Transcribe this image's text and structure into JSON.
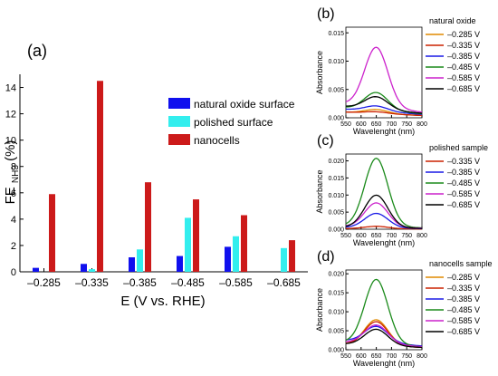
{
  "panel_labels": [
    "(a)",
    "(b)",
    "(c)",
    "(d)"
  ],
  "chart_data": [
    {
      "type": "bar",
      "panel": "(a)",
      "title": "",
      "ylabel": "FE",
      "ylabel_subscript": "NH3",
      "ylabel_unit": "(%)",
      "xlabel": "E (V vs. RHE)",
      "ylim": [
        0,
        15
      ],
      "yticks": [
        "0",
        "2",
        "4",
        "6",
        "8",
        "10",
        "12",
        "14"
      ],
      "categories": [
        "-0.285",
        "-0.335",
        "-0.385",
        "-0.485",
        "-0.585",
        "-0.685"
      ],
      "legend_position": "top-right",
      "series": [
        {
          "name": "natural oxide surface",
          "color": "#1010ee",
          "values": [
            0.3,
            0.6,
            1.1,
            1.2,
            1.9,
            null
          ]
        },
        {
          "name": "polished surface",
          "color": "#33eeee",
          "values": [
            null,
            0.2,
            1.7,
            4.1,
            2.7,
            1.8
          ]
        },
        {
          "name": "nanocells",
          "color": "#cc1a1a",
          "values": [
            5.9,
            14.5,
            6.8,
            5.5,
            4.3,
            2.4
          ]
        }
      ]
    },
    {
      "type": "line",
      "panel": "(b)",
      "legend_title": "natural oxide",
      "xlabel": "Wavelenght (nm)",
      "ylabel": "Absorbance",
      "xlim": [
        550,
        800
      ],
      "ylim": [
        0,
        0.016
      ],
      "xticks": [
        "550",
        "600",
        "650",
        "700",
        "750",
        "800"
      ],
      "yticks": [
        "0.000",
        "0.005",
        "0.010",
        "0.015"
      ],
      "series": [
        {
          "name": "–0.285 V",
          "color": "#e08a00",
          "peak": 0.0012,
          "base": 0.001
        },
        {
          "name": "–0.335 V",
          "color": "#cc2200",
          "peak": 0.0008,
          "base": 0.001
        },
        {
          "name": "–0.385 V",
          "color": "#1a1ae6",
          "peak": 0.0017,
          "base": 0.0015
        },
        {
          "name": "–0.485 V",
          "color": "#1a8a1a",
          "peak": 0.004,
          "base": 0.0018
        },
        {
          "name": "–0.585 V",
          "color": "#cc22cc",
          "peak": 0.0118,
          "base": 0.0025
        },
        {
          "name": "–0.685 V",
          "color": "#000000",
          "peak": 0.0032,
          "base": 0.002
        }
      ]
    },
    {
      "type": "line",
      "panel": "(c)",
      "legend_title": "polished sample",
      "xlabel": "Wavelenght (nm)",
      "ylabel": "Absorbance",
      "xlim": [
        550,
        800
      ],
      "ylim": [
        0,
        0.022
      ],
      "xticks": [
        "550",
        "600",
        "650",
        "700",
        "750",
        "800"
      ],
      "yticks": [
        "0.000",
        "0.005",
        "0.010",
        "0.015",
        "0.020"
      ],
      "series": [
        {
          "name": "–0.335 V",
          "color": "#cc2200",
          "peak": 0.0008,
          "base": 0.0002
        },
        {
          "name": "–0.385 V",
          "color": "#1a1ae6",
          "peak": 0.0045,
          "base": 0.0005
        },
        {
          "name": "–0.485 V",
          "color": "#1a8a1a",
          "peak": 0.0205,
          "base": 0.001
        },
        {
          "name": "–0.585 V",
          "color": "#cc22cc",
          "peak": 0.0075,
          "base": 0.0008
        },
        {
          "name": "–0.685 V",
          "color": "#000000",
          "peak": 0.0098,
          "base": 0.0006
        }
      ]
    },
    {
      "type": "line",
      "panel": "(d)",
      "legend_title": "nanocells sample",
      "xlabel": "Wavelenght (nm)",
      "ylabel": "Absorbance",
      "xlim": [
        550,
        800
      ],
      "ylim": [
        0,
        0.021
      ],
      "xticks": [
        "550",
        "600",
        "650",
        "700",
        "750",
        "800"
      ],
      "yticks": [
        "0.000",
        "0.005",
        "0.010",
        "0.015",
        "0.020"
      ],
      "series": [
        {
          "name": "–0.285 V",
          "color": "#e08a00",
          "peak": 0.0075,
          "base": 0.0015
        },
        {
          "name": "–0.335 V",
          "color": "#cc2200",
          "peak": 0.007,
          "base": 0.0015
        },
        {
          "name": "–0.385 V",
          "color": "#1a1ae6",
          "peak": 0.0055,
          "base": 0.0025
        },
        {
          "name": "–0.485 V",
          "color": "#1a8a1a",
          "peak": 0.018,
          "base": 0.002
        },
        {
          "name": "–0.585 V",
          "color": "#cc22cc",
          "peak": 0.006,
          "base": 0.002
        },
        {
          "name": "–0.685 V",
          "color": "#000000",
          "peak": 0.005,
          "base": 0.0015
        }
      ]
    }
  ]
}
